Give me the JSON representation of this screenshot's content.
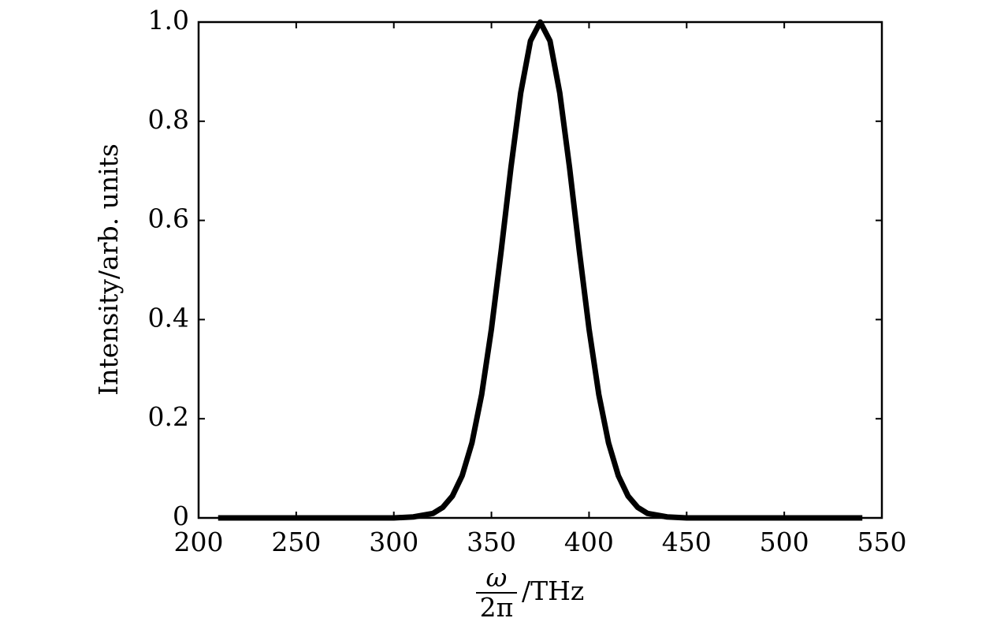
{
  "chart_data": {
    "type": "line",
    "xlabel": {
      "numerator": "ω",
      "denominator": "2π",
      "suffix": "/THz"
    },
    "ylabel": "Intensity/arb. units",
    "x": [
      210,
      250,
      300,
      310,
      320,
      325,
      330,
      335,
      340,
      345,
      350,
      355,
      360,
      365,
      370,
      375,
      380,
      385,
      390,
      395,
      400,
      405,
      410,
      415,
      420,
      425,
      430,
      440,
      450,
      500,
      540
    ],
    "series": [
      {
        "color": "#000000",
        "values": [
          0,
          0,
          0,
          0.002,
          0.009,
          0.021,
          0.044,
          0.085,
          0.151,
          0.249,
          0.381,
          0.539,
          0.707,
          0.857,
          0.962,
          1,
          0.962,
          0.857,
          0.707,
          0.539,
          0.381,
          0.249,
          0.151,
          0.085,
          0.044,
          0.021,
          0.009,
          0.002,
          0,
          0,
          0
        ]
      }
    ],
    "xlim": [
      200,
      550
    ],
    "xticks": [
      200,
      250,
      300,
      350,
      400,
      450,
      500,
      550
    ],
    "ylim": [
      0,
      1
    ],
    "yticks": [
      0,
      0.2,
      0.4,
      0.6,
      0.8,
      {
        "value": 1,
        "label": "1.0"
      }
    ],
    "grid": false
  }
}
